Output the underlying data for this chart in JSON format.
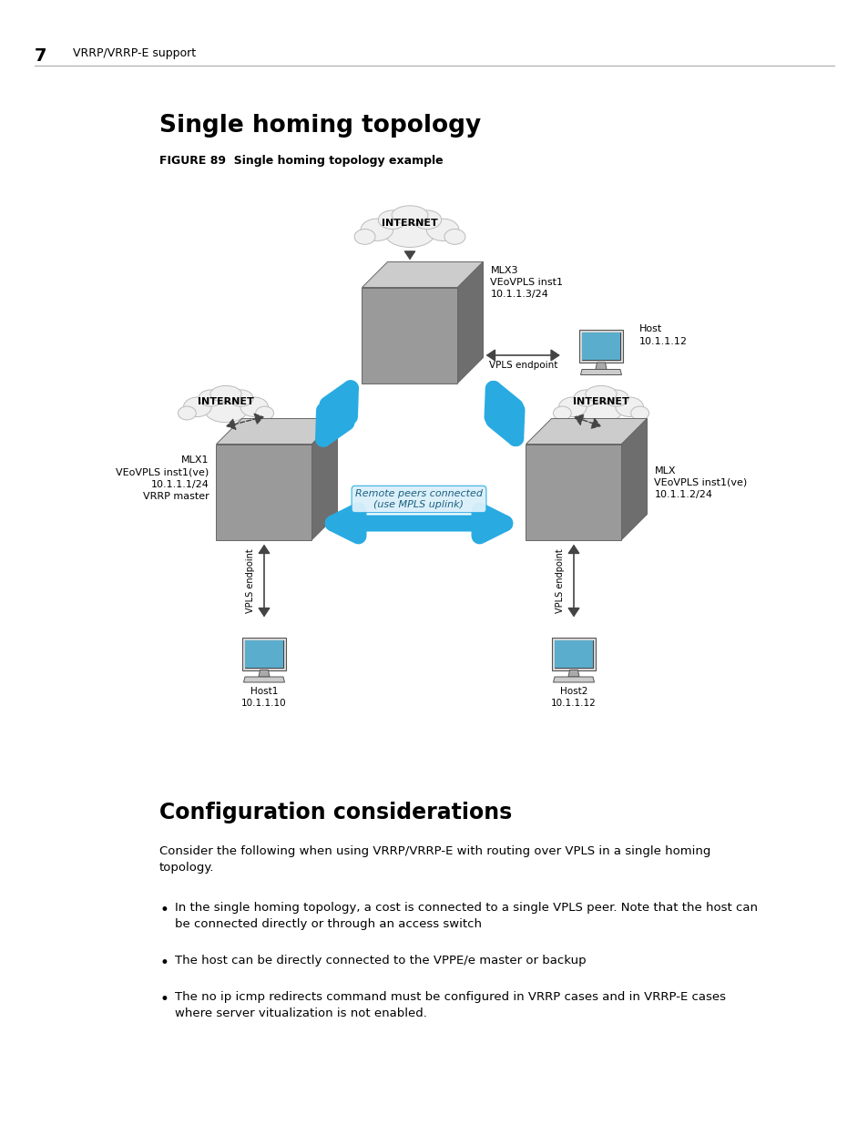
{
  "page_header_num": "7",
  "page_header_text": "VRRP/VRRP-E support",
  "section_title": "Single homing topology",
  "figure_caption": "FIGURE 89  Single homing topology example",
  "section2_title": "Configuration considerations",
  "body_text": "Consider the following when using VRRP/VRRP-E with routing over VPLS in a single homing\ntopology.",
  "bullet_points": [
    "In the single homing topology, a cost is connected to a single VPLS peer. Note that the host can\nbe connected directly or through an access switch",
    "The host can be directly connected to the VPPE/e master or backup",
    "The no ip icmp redirects command must be configured in VRRP cases and in VRRP-E cases\nwhere server vitualization is not enabled."
  ],
  "bg_color": "#ffffff",
  "arrow_color": "#29abe2",
  "dark_arrow_color": "#555555",
  "remote_peers_text": "Remote peers connected\n(use MPLS uplink)",
  "node_top": "MLX3\nVEoVPLS inst1\n10.1.1.3/24",
  "node_left": "MLX1\nVEoVPLS inst1(ve)\n10.1.1.1/24\nVRRP master",
  "node_right": "MLX\nVEoVPLS inst1(ve)\n10.1.1.2/24",
  "cloud_label": "INTERNET",
  "host_top_right": "Host\n10.1.1.12",
  "host_bottom_left": "Host1\n10.1.1.10",
  "host_bottom_right": "Host2\n10.1.1.12",
  "vpls_endpoint_label": "VPLS endpoint"
}
